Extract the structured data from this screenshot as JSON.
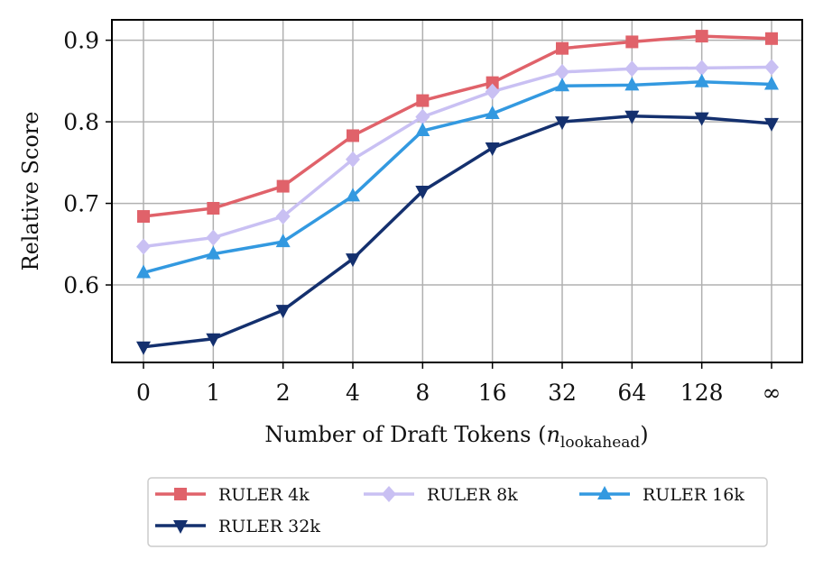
{
  "chart_data": {
    "type": "line",
    "xlabel_main": "Number of Draft Tokens (",
    "xlabel_var": "n",
    "xlabel_sub": "lookahead",
    "xlabel_close": ")",
    "ylabel": "Relative Score",
    "categories": [
      "0",
      "1",
      "2",
      "4",
      "8",
      "16",
      "32",
      "64",
      "128",
      "∞"
    ],
    "yticks": [
      "0.6",
      "0.7",
      "0.8",
      "0.9"
    ],
    "ylim": [
      0.505,
      0.925
    ],
    "grid": true,
    "legend_position": "bottom-outside",
    "series": [
      {
        "name": "RULER 4k",
        "color": "#e0626a",
        "marker": "square",
        "values": [
          0.684,
          0.694,
          0.721,
          0.783,
          0.826,
          0.848,
          0.89,
          0.898,
          0.905,
          0.902
        ]
      },
      {
        "name": "RULER 8k",
        "color": "#c9c0f3",
        "marker": "diamond",
        "values": [
          0.647,
          0.658,
          0.684,
          0.754,
          0.806,
          0.837,
          0.861,
          0.865,
          0.866,
          0.867
        ]
      },
      {
        "name": "RULER 16k",
        "color": "#3399e0",
        "marker": "triangle-up",
        "values": [
          0.615,
          0.638,
          0.653,
          0.709,
          0.789,
          0.81,
          0.844,
          0.845,
          0.849,
          0.846
        ]
      },
      {
        "name": "RULER 32k",
        "color": "#14306e",
        "marker": "triangle-down",
        "values": [
          0.524,
          0.534,
          0.569,
          0.632,
          0.715,
          0.768,
          0.8,
          0.807,
          0.805,
          0.798
        ]
      }
    ]
  }
}
